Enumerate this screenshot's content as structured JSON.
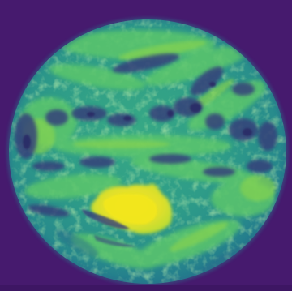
{
  "image": {
    "subject": "full-disk-earth",
    "colormap": "viridis",
    "colors": {
      "space": "#461a6e",
      "space_dark": "#3d1663",
      "disk_base": "#2a8d8b",
      "disk_cloud": "#4fbf72",
      "cloud_bright": "#7ed256",
      "landmass_bright": "#e5e22a",
      "landmass_edge": "#b8dc33",
      "cold_cloud_top": "#31386f",
      "storm_core": "#282f6a"
    }
  }
}
